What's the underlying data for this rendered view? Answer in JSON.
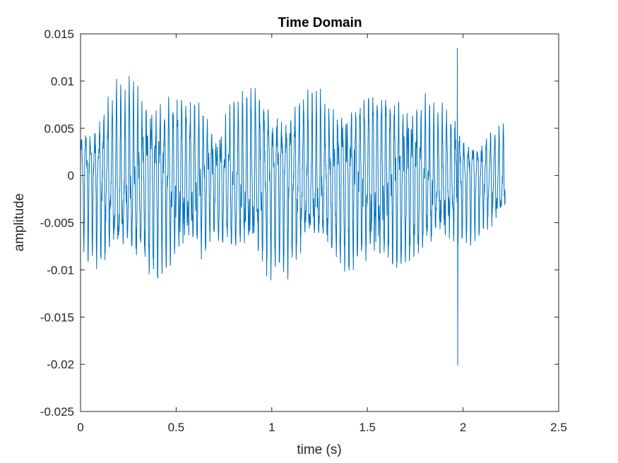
{
  "chart_data": {
    "type": "line",
    "title": "Time Domain",
    "xlabel": "time (s)",
    "ylabel": "amplitude",
    "xlim": [
      0,
      2.5
    ],
    "ylim": [
      -0.025,
      0.015
    ],
    "xticks": [
      0,
      0.5,
      1,
      1.5,
      2,
      2.5
    ],
    "xtick_labels": [
      "0",
      "0.5",
      "1",
      "1.5",
      "2",
      "2.5"
    ],
    "yticks": [
      -0.025,
      -0.02,
      -0.015,
      -0.01,
      -0.005,
      0,
      0.005,
      0.01,
      0.015
    ],
    "ytick_labels": [
      "-0.025",
      "-0.02",
      "-0.015",
      "-0.01",
      "-0.005",
      "0",
      "0.005",
      "0.01",
      "0.015"
    ],
    "grid": false,
    "series_color": "#0072bd",
    "signal": {
      "duration": 2.22,
      "envelope": [
        [
          0.0,
          0.0065
        ],
        [
          0.1,
          0.008
        ],
        [
          0.2,
          0.0088
        ],
        [
          0.3,
          0.009
        ],
        [
          0.4,
          0.0095
        ],
        [
          0.5,
          0.0085
        ],
        [
          0.6,
          0.008
        ],
        [
          0.7,
          0.006
        ],
        [
          0.8,
          0.0075
        ],
        [
          0.9,
          0.0085
        ],
        [
          1.0,
          0.0088
        ],
        [
          1.1,
          0.0085
        ],
        [
          1.2,
          0.0078
        ],
        [
          1.3,
          0.008
        ],
        [
          1.4,
          0.0088
        ],
        [
          1.5,
          0.009
        ],
        [
          1.6,
          0.0087
        ],
        [
          1.7,
          0.0085
        ],
        [
          1.8,
          0.0078
        ],
        [
          1.9,
          0.007
        ],
        [
          1.95,
          0.0065
        ],
        [
          2.0,
          0.006
        ],
        [
          2.1,
          0.005
        ],
        [
          2.22,
          0.005
        ]
      ],
      "offset": -0.0005,
      "spike": {
        "time": 1.97,
        "max": 0.0135,
        "min": -0.0201
      }
    }
  }
}
